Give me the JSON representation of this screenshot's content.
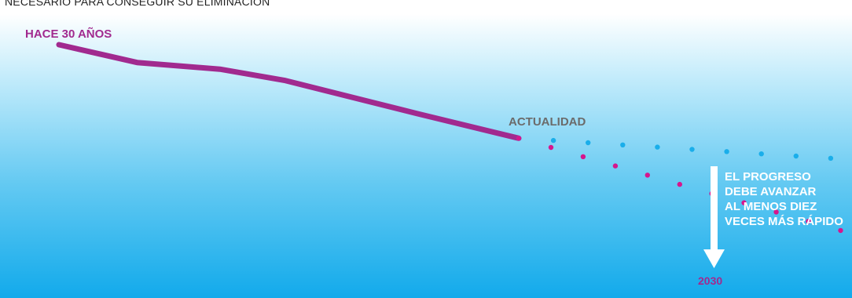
{
  "caption": "NECESARIO PARA CONSEGUIR SU ELIMINACIÓN",
  "colors": {
    "history": "#a12a8f",
    "current_trend": "#1aaeea",
    "required_trend": "#d6168d",
    "arrow": "#ffffff"
  },
  "labels": {
    "start": "HACE 30 AÑOS",
    "now": "ACTUALIDAD",
    "end": "2030"
  },
  "callout_lines": [
    "EL PROGRESO",
    "DEBE AVANZAR",
    "AL MENOS DIEZ",
    "VECES MÁS RÁPIDO"
  ],
  "chart_data": {
    "type": "line",
    "x_labels": [
      "HACE 30 AÑOS",
      "ACTUALIDAD",
      "2030"
    ],
    "series": [
      {
        "style": "solid",
        "color": "#a12a8f",
        "points": [
          [
            0,
            100
          ],
          [
            0.17,
            92
          ],
          [
            0.35,
            89
          ],
          [
            0.49,
            84
          ],
          [
            0.78,
            69
          ],
          [
            1,
            58
          ]
        ]
      },
      {
        "style": "dotted",
        "color": "#1aaeea",
        "points": [
          [
            1,
            58
          ],
          [
            1.98,
            45
          ]
        ]
      },
      {
        "style": "dotted",
        "color": "#d6168d",
        "points": [
          [
            1,
            58
          ],
          [
            1.98,
            0
          ]
        ]
      }
    ],
    "xlim": [
      0,
      2
    ],
    "ylim": [
      0,
      100
    ],
    "grid": false,
    "legend": "none"
  }
}
